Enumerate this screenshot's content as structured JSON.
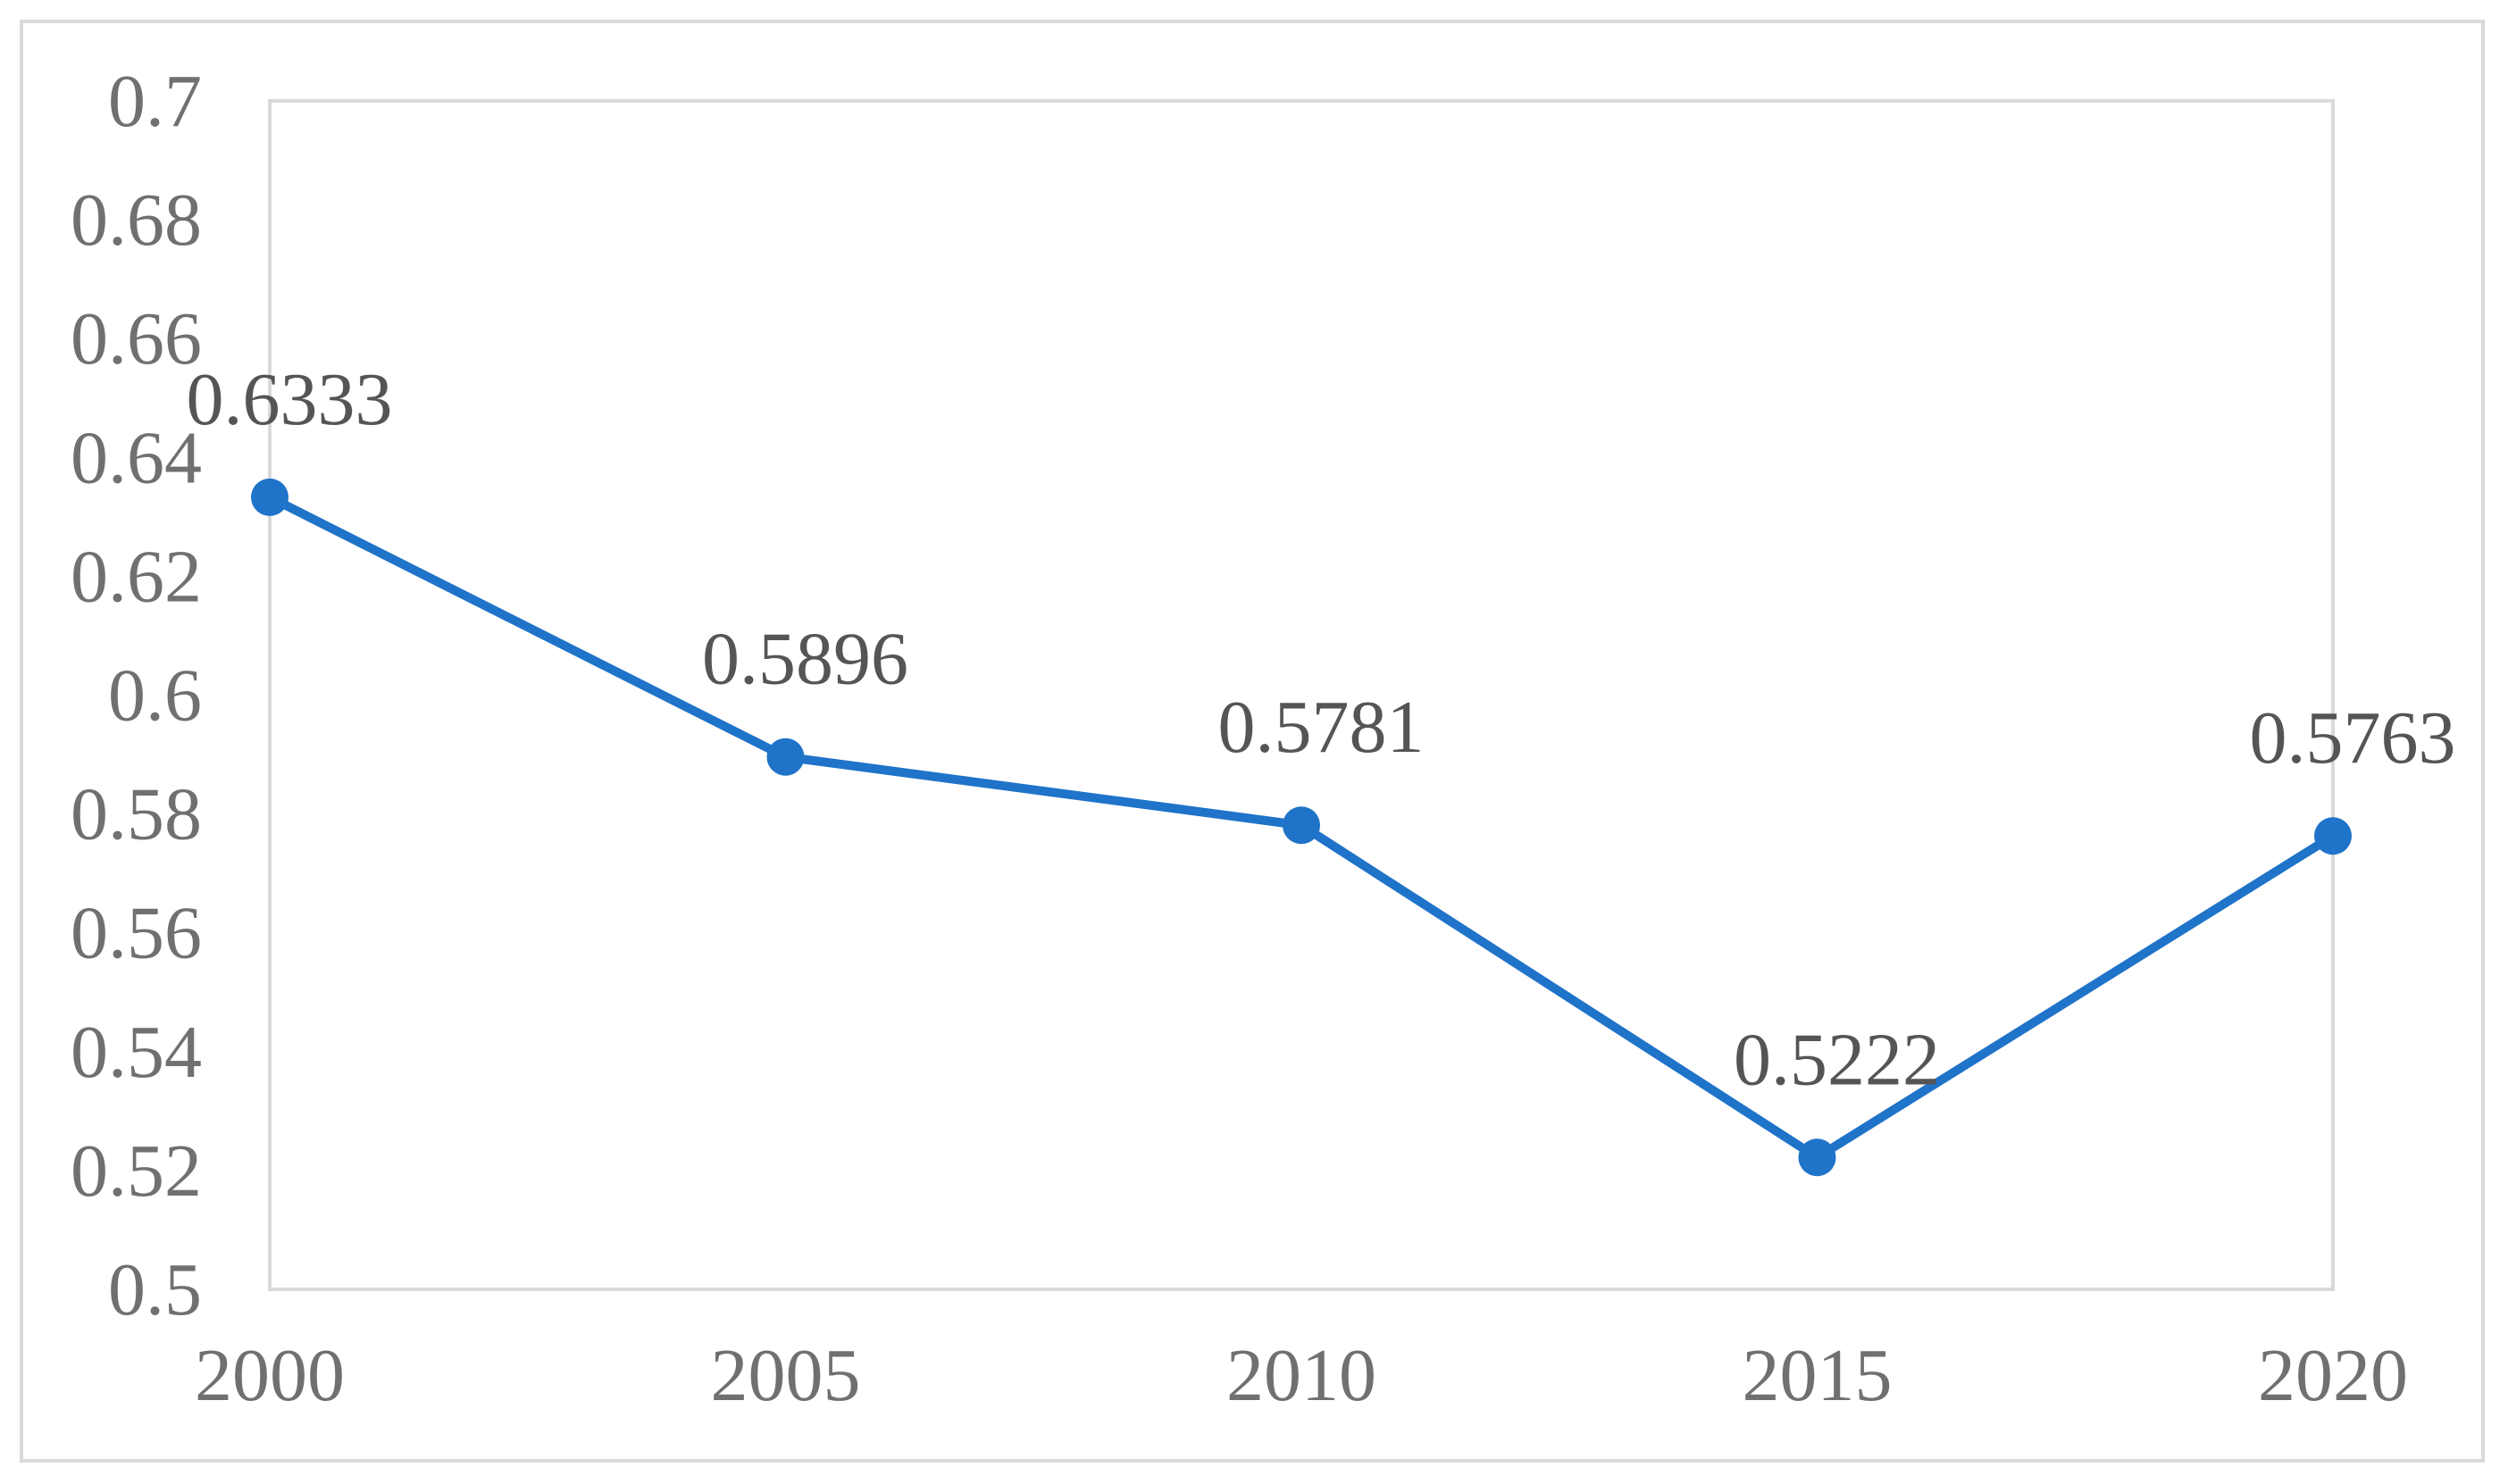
{
  "chart_data": {
    "type": "line",
    "title": "",
    "xlabel": "",
    "ylabel": "",
    "categories": [
      "2000",
      "2005",
      "2010",
      "2015",
      "2020"
    ],
    "series": [
      {
        "values": [
          0.6333,
          0.5896,
          0.5781,
          0.5222,
          0.5763
        ],
        "data_labels": [
          "0.6333",
          "0.5896",
          "0.5781",
          "0.5222",
          "0.5763"
        ],
        "color": "#1f73c9",
        "markers": "circle"
      }
    ],
    "ylim": [
      0.5,
      0.7
    ],
    "y_ticks": [
      0.5,
      0.52,
      0.54,
      0.56,
      0.58,
      0.6,
      0.62,
      0.64,
      0.66,
      0.68,
      0.7
    ],
    "y_tick_labels": [
      "0.5",
      "0.52",
      "0.54",
      "0.56",
      "0.58",
      "0.6",
      "0.62",
      "0.64",
      "0.66",
      "0.68",
      "0.7"
    ],
    "grid": false,
    "legend": "none",
    "axis_color": "#d9d9d9",
    "text_color": "#707070"
  }
}
